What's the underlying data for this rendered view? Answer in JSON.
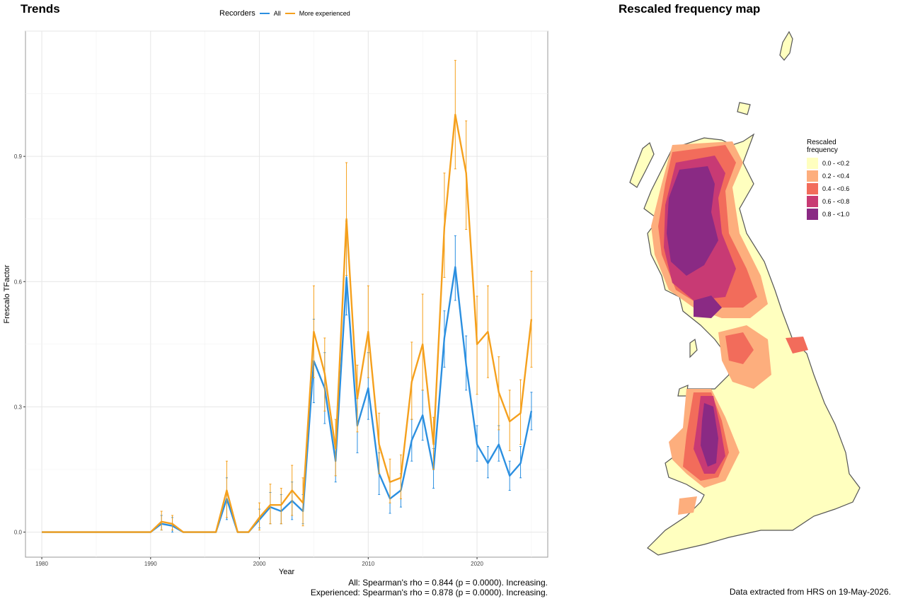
{
  "trend_panel": {
    "title": "Trends",
    "legend_title": "Recorders",
    "stat_all": "All: Spearman's rho = 0.844 (p = 0.0000). Increasing.",
    "stat_experienced": "Experienced: Spearman's rho = 0.878 (p = 0.0000). Increasing."
  },
  "map_panel": {
    "title": "Rescaled frequency map",
    "legend_title": "Rescaled frequency",
    "classes": [
      {
        "label": "0.0 - <0.2",
        "color": "#ffffbf"
      },
      {
        "label": "0.2 - <0.4",
        "color": "#fdae7d"
      },
      {
        "label": "0.4 - <0.6",
        "color": "#f26c5b"
      },
      {
        "label": "0.6 - <0.8",
        "color": "#c83a74"
      },
      {
        "label": "0.8 - <1.0",
        "color": "#8a2a84"
      }
    ],
    "footer": "Data extracted from HRS on 19-May-2026."
  },
  "chart_data": {
    "type": "line",
    "title": "Trends",
    "xlabel": "Year",
    "ylabel": "Frescalo TFactor",
    "xlim": [
      1978.5,
      2026.5
    ],
    "ylim": [
      -0.06,
      1.2
    ],
    "x_ticks": [
      1980,
      1990,
      2000,
      2010,
      2020
    ],
    "y_ticks": [
      0.0,
      0.3,
      0.6,
      0.9
    ],
    "y_tick_labels": [
      "0.0",
      "0.3",
      "0.6",
      "0.9"
    ],
    "grid": true,
    "legend_position": "top",
    "x": [
      1980,
      1981,
      1982,
      1983,
      1984,
      1985,
      1986,
      1987,
      1988,
      1989,
      1990,
      1991,
      1992,
      1993,
      1994,
      1995,
      1996,
      1997,
      1998,
      1999,
      2000,
      2001,
      2002,
      2003,
      2004,
      2005,
      2006,
      2007,
      2008,
      2009,
      2010,
      2011,
      2012,
      2013,
      2014,
      2015,
      2016,
      2017,
      2018,
      2019,
      2020,
      2021,
      2022,
      2023,
      2024,
      2025
    ],
    "series": [
      {
        "name": "All",
        "color": "#2b8fe0",
        "values": [
          0,
          0,
          0,
          0,
          0,
          0,
          0,
          0,
          0,
          0,
          0,
          0.02,
          0.015,
          0,
          0,
          0,
          0,
          0.08,
          0,
          0,
          0.03,
          0.06,
          0.05,
          0.075,
          0.05,
          0.41,
          0.345,
          0.17,
          0.61,
          0.255,
          0.345,
          0.14,
          0.08,
          0.1,
          0.22,
          0.28,
          0.15,
          0.465,
          0.635,
          0.4,
          0.21,
          0.165,
          0.21,
          0.135,
          0.165,
          0.29
        ],
        "lower": [
          0,
          0,
          0,
          0,
          0,
          0,
          0,
          0,
          0,
          0,
          0,
          0.005,
          0,
          0,
          0,
          0,
          0,
          0.03,
          0,
          0,
          0.01,
          0.02,
          0.02,
          0.03,
          0.02,
          0.31,
          0.26,
          0.12,
          0.52,
          0.19,
          0.27,
          0.09,
          0.045,
          0.06,
          0.17,
          0.22,
          0.105,
          0.395,
          0.555,
          0.34,
          0.17,
          0.13,
          0.17,
          0.1,
          0.13,
          0.245
        ],
        "upper": [
          0,
          0,
          0,
          0,
          0,
          0,
          0,
          0,
          0,
          0,
          0,
          0.04,
          0.035,
          0,
          0,
          0,
          0,
          0.13,
          0,
          0,
          0.055,
          0.095,
          0.09,
          0.12,
          0.09,
          0.51,
          0.43,
          0.22,
          0.745,
          0.32,
          0.43,
          0.19,
          0.12,
          0.14,
          0.27,
          0.34,
          0.2,
          0.53,
          0.71,
          0.47,
          0.255,
          0.205,
          0.255,
          0.17,
          0.205,
          0.335
        ]
      },
      {
        "name": "More experienced",
        "color": "#f5a01d",
        "values": [
          0,
          0,
          0,
          0,
          0,
          0,
          0,
          0,
          0,
          0,
          0,
          0.025,
          0.02,
          0,
          0,
          0,
          0,
          0.1,
          0,
          0,
          0.035,
          0.065,
          0.065,
          0.1,
          0.07,
          0.48,
          0.38,
          0.2,
          0.75,
          0.32,
          0.48,
          0.21,
          0.12,
          0.13,
          0.36,
          0.45,
          0.21,
          0.73,
          1.0,
          0.86,
          0.45,
          0.48,
          0.335,
          0.265,
          0.285,
          0.51
        ],
        "lower": [
          0,
          0,
          0,
          0,
          0,
          0,
          0,
          0,
          0,
          0,
          0,
          0.005,
          0.005,
          0,
          0,
          0,
          0,
          0.035,
          0,
          0,
          0.005,
          0.02,
          0.02,
          0.04,
          0.015,
          0.37,
          0.29,
          0.135,
          0.615,
          0.24,
          0.37,
          0.14,
          0.07,
          0.08,
          0.27,
          0.34,
          0.15,
          0.61,
          0.87,
          0.725,
          0.33,
          0.37,
          0.245,
          0.195,
          0.21,
          0.395
        ],
        "upper": [
          0,
          0,
          0,
          0,
          0,
          0,
          0,
          0,
          0,
          0,
          0,
          0.05,
          0.04,
          0,
          0,
          0,
          0,
          0.17,
          0,
          0,
          0.07,
          0.115,
          0.105,
          0.16,
          0.13,
          0.59,
          0.465,
          0.27,
          0.885,
          0.4,
          0.59,
          0.285,
          0.175,
          0.185,
          0.455,
          0.57,
          0.275,
          0.86,
          1.13,
          0.985,
          0.565,
          0.59,
          0.42,
          0.34,
          0.365,
          0.625
        ]
      }
    ]
  }
}
